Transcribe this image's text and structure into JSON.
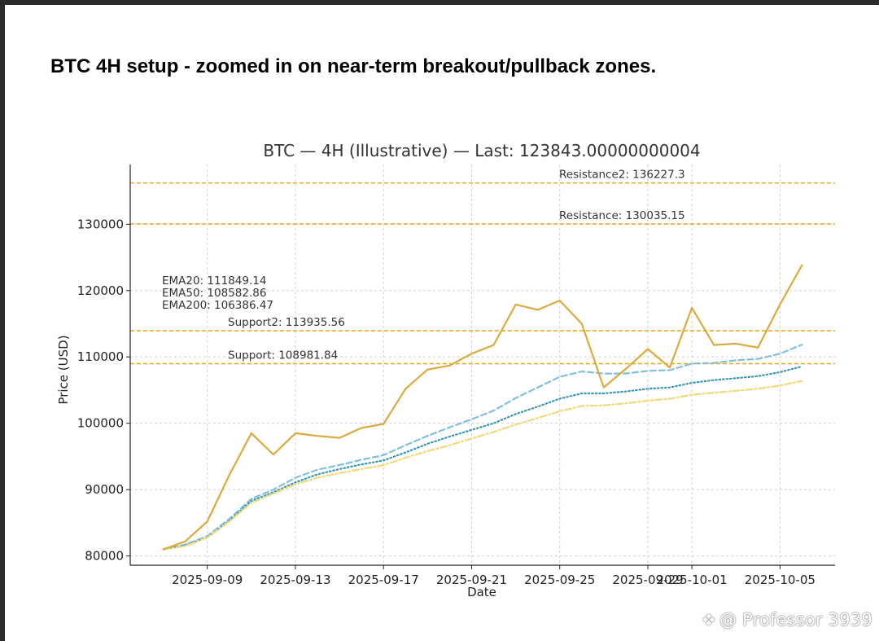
{
  "headline": "BTC 4H setup - zoomed in on near-term breakout/pullback zones.",
  "watermark": "@ Professor 3939",
  "watermark_icon": "binance-logo-icon",
  "colors": {
    "price": "#dcaa3c",
    "ema20": "#80c0dd",
    "ema50": "#3a97b4",
    "ema200": "#f2d97a",
    "level_line": "#e4a52d",
    "axis": "#222222",
    "grid": "#d0d0d0",
    "text": "#333333"
  },
  "chart_data": {
    "type": "line",
    "title": "BTC — 4H (Illustrative) — Last: 123843.00000000004",
    "xlabel": "Date",
    "ylabel": "Price (USD)",
    "ylim": [
      78600,
      139000
    ],
    "xlim": [
      -3.5,
      28.5
    ],
    "grid": true,
    "x": [
      "2025-09-07",
      "2025-09-08",
      "2025-09-09",
      "2025-09-10",
      "2025-09-11",
      "2025-09-12",
      "2025-09-13",
      "2025-09-14",
      "2025-09-15",
      "2025-09-16",
      "2025-09-17",
      "2025-09-18",
      "2025-09-19",
      "2025-09-20",
      "2025-09-21",
      "2025-09-22",
      "2025-09-23",
      "2025-09-24",
      "2025-09-25",
      "2025-09-26",
      "2025-09-27",
      "2025-09-28",
      "2025-09-29",
      "2025-09-30",
      "2025-10-01",
      "2025-10-02",
      "2025-10-03",
      "2025-10-04",
      "2025-10-05",
      "2025-10-06"
    ],
    "x_day_offset": [
      -2,
      -1,
      0,
      1,
      2,
      3,
      4,
      5,
      6,
      7,
      8,
      9,
      10,
      11,
      12,
      13,
      14,
      15,
      16,
      17,
      18,
      19,
      20,
      21,
      22,
      23,
      24,
      25,
      26,
      27
    ],
    "xticks": [
      {
        "label": "2025-09-09",
        "day": 0
      },
      {
        "label": "2025-09-13",
        "day": 4
      },
      {
        "label": "2025-09-17",
        "day": 8
      },
      {
        "label": "2025-09-21",
        "day": 12
      },
      {
        "label": "2025-09-25",
        "day": 16
      },
      {
        "label": "2025-09-29",
        "day": 20
      },
      {
        "label": "2025-10-01",
        "day": 22
      },
      {
        "label": "2025-10-05",
        "day": 26
      }
    ],
    "yticks": [
      80000,
      90000,
      100000,
      110000,
      120000,
      130000
    ],
    "series": [
      {
        "name": "Price",
        "style": "solid",
        "values": [
          81000,
          82200,
          85200,
          92200,
          98500,
          95300,
          98500,
          98100,
          97800,
          99300,
          99900,
          105200,
          108100,
          108700,
          110500,
          111800,
          117900,
          117100,
          118500,
          115000,
          105400,
          108200,
          111200,
          108400,
          117400,
          111800,
          112000,
          111400,
          117900,
          123843
        ]
      },
      {
        "name": "EMA20",
        "style": "dashed",
        "values": [
          81000,
          81700,
          83000,
          85600,
          88600,
          90000,
          91800,
          93000,
          93700,
          94500,
          95200,
          96700,
          98100,
          99400,
          100600,
          101900,
          103800,
          105400,
          107000,
          107800,
          107500,
          107500,
          107900,
          108000,
          109000,
          109100,
          109500,
          109700,
          110500,
          111849.14
        ]
      },
      {
        "name": "EMA50",
        "style": "dotted",
        "values": [
          81000,
          81600,
          82800,
          85300,
          88300,
          89600,
          91100,
          92300,
          93100,
          93800,
          94400,
          95600,
          96900,
          98000,
          99000,
          100000,
          101400,
          102500,
          103700,
          104500,
          104500,
          104800,
          105200,
          105400,
          106100,
          106500,
          106800,
          107100,
          107700,
          108582.86
        ]
      },
      {
        "name": "EMA200",
        "style": "dashdot",
        "values": [
          81000,
          81500,
          82800,
          85200,
          88000,
          89400,
          90800,
          91800,
          92500,
          93100,
          93700,
          94800,
          95800,
          96700,
          97700,
          98700,
          99800,
          100800,
          101800,
          102600,
          102700,
          103000,
          103400,
          103700,
          104300,
          104600,
          104900,
          105200,
          105700,
          106386.47
        ]
      }
    ],
    "levels": [
      {
        "name": "Resistance2",
        "label": "Resistance2: 136227.3",
        "value": 136227.3
      },
      {
        "name": "Resistance",
        "label": "Resistance: 130035.15",
        "value": 130035.15
      },
      {
        "name": "Support2",
        "label": "Support2: 113935.56",
        "value": 113935.56
      },
      {
        "name": "Support",
        "label": "Support: 108981.84",
        "value": 108981.84
      }
    ],
    "ema_annotations": [
      "EMA20: 111849.14",
      "EMA50: 108582.86",
      "EMA200: 106386.47"
    ]
  }
}
